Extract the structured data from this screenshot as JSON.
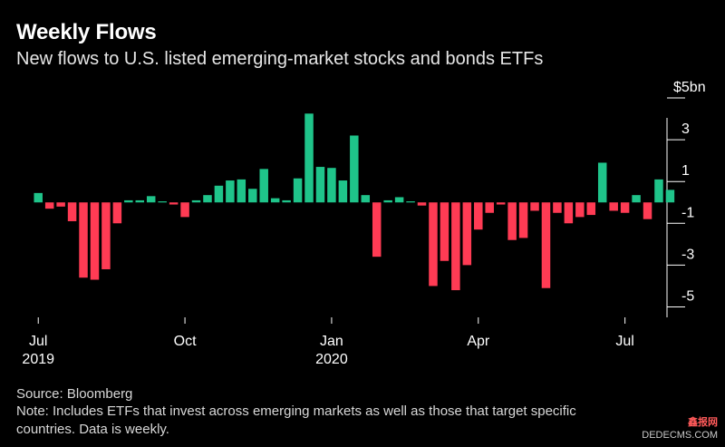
{
  "header": {
    "title": "Weekly Flows",
    "subtitle": "New flows to U.S. listed emerging-market stocks and bonds ETFs"
  },
  "footer": {
    "source": "Source: Bloomberg",
    "note": "Note: Includes ETFs that invest across emerging markets as well as those that target specific countries. Data is weekly."
  },
  "watermark": {
    "line1": "鑫报网",
    "line2": "DEDECMS.COM"
  },
  "colors": {
    "positive": "#1fc48a",
    "negative": "#ff3b54",
    "background": "#000000",
    "text": "#ffffff"
  },
  "chart_data": {
    "type": "bar",
    "title": "Weekly Flows",
    "subtitle": "New flows to U.S. listed emerging-market stocks and bonds ETFs",
    "ylabel": "$5bn",
    "ylim": [
      -5.5,
      5
    ],
    "yticks": [
      {
        "value": 5,
        "label": "$5bn"
      },
      {
        "value": 3,
        "label": "3"
      },
      {
        "value": 1,
        "label": "1"
      },
      {
        "value": -1,
        "label": "-1"
      },
      {
        "value": -3,
        "label": "-3"
      },
      {
        "value": -5,
        "label": "-5"
      }
    ],
    "xticks": [
      {
        "week": 0,
        "label": "Jul",
        "year": "2019"
      },
      {
        "week": 13,
        "label": "Oct",
        "year": ""
      },
      {
        "week": 26,
        "label": "Jan",
        "year": "2020"
      },
      {
        "week": 39,
        "label": "Apr",
        "year": ""
      },
      {
        "week": 52,
        "label": "Jul",
        "year": ""
      }
    ],
    "values": [
      0.45,
      -0.3,
      -0.2,
      -0.9,
      -3.6,
      -3.7,
      -3.2,
      -1.0,
      0.1,
      0.1,
      0.3,
      0.05,
      -0.1,
      -0.7,
      0.1,
      0.35,
      0.8,
      1.05,
      1.1,
      0.65,
      1.6,
      0.2,
      0.1,
      1.15,
      4.25,
      1.7,
      1.65,
      1.05,
      3.2,
      0.35,
      -2.6,
      0.1,
      0.25,
      0.05,
      -0.15,
      -4.0,
      -2.8,
      -4.2,
      -3.0,
      -1.3,
      -0.5,
      -0.1,
      -1.8,
      -1.7,
      -0.4,
      -4.1,
      -0.5,
      -1.0,
      -0.7,
      -0.6,
      1.9,
      -0.4,
      -0.5,
      0.35,
      -0.8,
      1.1,
      0.6
    ],
    "grid": false,
    "legend": "none"
  }
}
